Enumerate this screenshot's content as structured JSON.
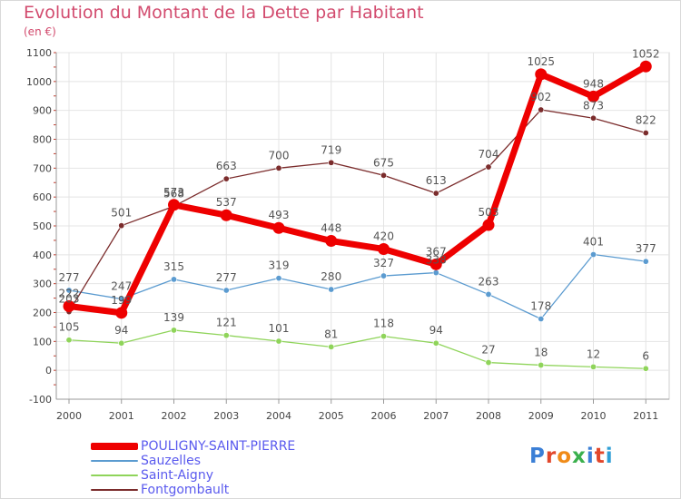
{
  "title": "Evolution du Montant de la Dette par Habitant",
  "unit_label": "(en €)",
  "logo_text": "Proxiti",
  "logo_colors": [
    "#3b7fd6",
    "#e2472b",
    "#f08b18",
    "#3bb04d",
    "#3b7fd6",
    "#e2472b",
    "#2f9fd6"
  ],
  "chart_data": {
    "type": "line",
    "x": [
      "2000",
      "2001",
      "2002",
      "2003",
      "2004",
      "2005",
      "2006",
      "2007",
      "2008",
      "2009",
      "2010",
      "2011"
    ],
    "ylim": [
      -100,
      1100
    ],
    "yticks": [
      -100,
      0,
      100,
      200,
      300,
      400,
      500,
      600,
      700,
      800,
      900,
      1000,
      1100
    ],
    "grid": true,
    "legend_position": "bottom-left",
    "series": [
      {
        "name": "POULIGNY-SAINT-PIERRE",
        "color": "#ee0000",
        "width": 7,
        "values": [
          222,
          199,
          573,
          537,
          493,
          448,
          420,
          367,
          503,
          1025,
          948,
          1052
        ]
      },
      {
        "name": "Sauzelles",
        "color": "#5b9bd0",
        "width": 1.3,
        "values": [
          277,
          247,
          315,
          277,
          319,
          280,
          327,
          338,
          263,
          178,
          401,
          377
        ]
      },
      {
        "name": "Saint-Aigny",
        "color": "#8fd45a",
        "width": 1.3,
        "values": [
          105,
          94,
          139,
          121,
          101,
          81,
          118,
          94,
          27,
          18,
          12,
          6
        ]
      },
      {
        "name": "Fontgombault",
        "color": "#7b2c2c",
        "width": 1.3,
        "values": [
          203,
          501,
          568,
          663,
          700,
          719,
          675,
          613,
          704,
          902,
          873,
          822
        ]
      }
    ],
    "data_labels": [
      [
        "222",
        "199",
        "573",
        "537",
        "493",
        "448",
        "420",
        "367",
        "503",
        "1025",
        "948",
        "1052"
      ],
      [
        "277",
        "247",
        "315",
        "277",
        "319",
        "280",
        "327",
        "338",
        "263",
        "178",
        "401",
        "377"
      ],
      [
        "105",
        "94",
        "139",
        "121",
        "101",
        "81",
        "118",
        "94",
        "27",
        "18",
        "12",
        "6"
      ],
      [
        "203",
        "501",
        "568",
        "663",
        "700",
        "719",
        "675",
        "613",
        "704",
        "902",
        "873",
        "822"
      ]
    ]
  }
}
